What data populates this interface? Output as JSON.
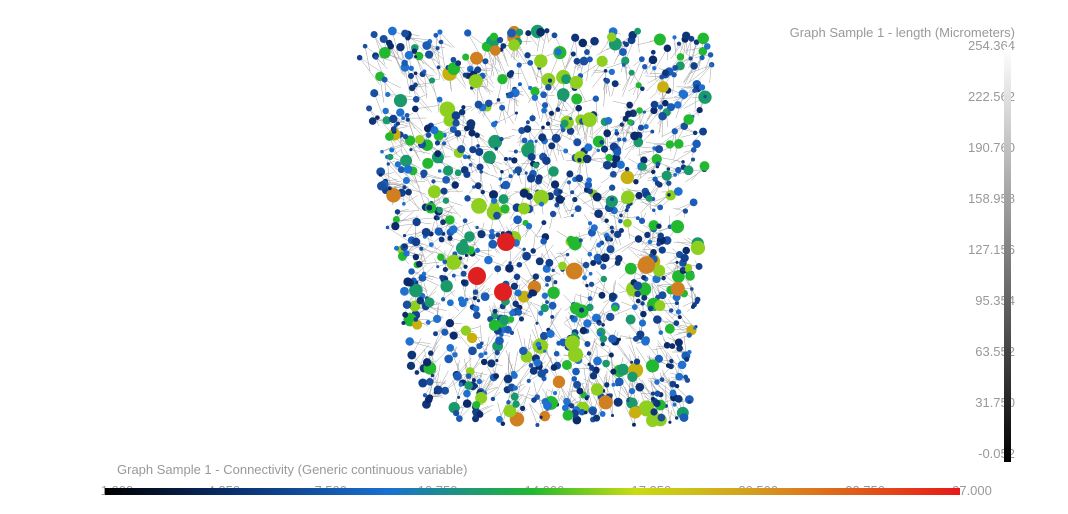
{
  "colorbars": [
    {
      "title": "Graph Sample 1 - length (Micrometers)",
      "ticks": [
        "254.364",
        "222.562",
        "190.760",
        "158.958",
        "127.156",
        "95.354",
        "63.552",
        "31.750",
        "-0.052"
      ]
    },
    {
      "title": "Graph Sample 1 - Connectivity (Generic continuous variable)",
      "ticks": [
        "1.000",
        "4.250",
        "7.500",
        "10.750",
        "14.000",
        "17.250",
        "20.500",
        "23.750",
        "27.000"
      ]
    }
  ]
}
